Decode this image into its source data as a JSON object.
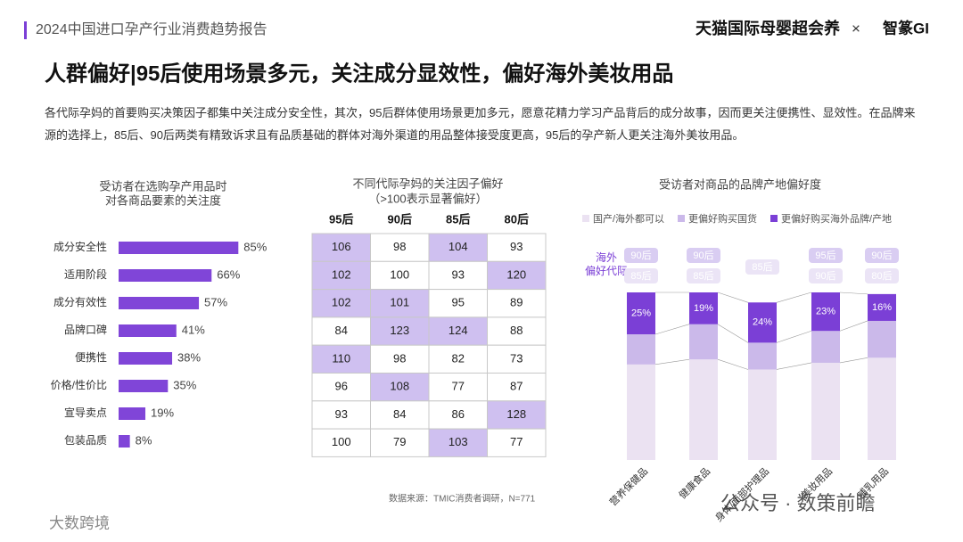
{
  "header": {
    "report": "2024中国进口孕产行业消费趋势报告",
    "brand": "天猫国际母婴超会养",
    "separator": "×",
    "partner": "智篆GI"
  },
  "title": "人群偏好|95后使用场景多元，关注成分显效性，偏好海外美妆用品",
  "summary": "各代际孕妈的首要购买决策因子都集中关注成分安全性，其次，95后群体使用场景更加多元，愿意花精力学习产品背后的成分故事，因而更关注便携性、显效性。在品牌来源的选择上，85后、90后两类有精致诉求且有品质基础的群体对海外渠道的用品整体接受度更高，95后的孕产新人更关注海外美妆用品。",
  "chart_data": [
    {
      "type": "bar",
      "title": "受访者在选购孕产用品时",
      "subtitle": "对各商品要素的关注度",
      "categories": [
        "成分安全性",
        "适用阶段",
        "成分有效性",
        "品牌口碑",
        "便携性",
        "价格/性价比",
        "宣导卖点",
        "包装品质"
      ],
      "values": [
        85,
        66,
        57,
        41,
        38,
        35,
        19,
        8
      ],
      "value_labels": [
        "85%",
        "66%",
        "57%",
        "41%",
        "38%",
        "35%",
        "19%",
        "8%"
      ],
      "color": "#8045d8"
    },
    {
      "type": "heatmap",
      "title": "不同代际孕妈的关注因子偏好",
      "subtitle": "（>100表示显著偏好）",
      "columns": [
        "95后",
        "90后",
        "85后",
        "80后"
      ],
      "values": [
        [
          106,
          98,
          104,
          93
        ],
        [
          102,
          100,
          93,
          120
        ],
        [
          102,
          101,
          95,
          89
        ],
        [
          84,
          123,
          124,
          88
        ],
        [
          110,
          98,
          82,
          73
        ],
        [
          96,
          108,
          77,
          87
        ],
        [
          93,
          84,
          86,
          128
        ],
        [
          100,
          79,
          103,
          77
        ]
      ],
      "threshold": 100,
      "color": "#cfc0f0"
    },
    {
      "type": "stacked_bar",
      "title": "受访者对商品的品牌产地偏好度",
      "categories": [
        "营养保健品",
        "健康食品",
        "身体/面部护理品",
        "美妆用品",
        "哺乳用品"
      ],
      "series": [
        {
          "name": "国产/海外都可以",
          "color": "#ebe2f2",
          "values": [
            57,
            60,
            54,
            58,
            61
          ]
        },
        {
          "name": "更偏好购买国货",
          "color": "#cbb9ea",
          "values": [
            18,
            21,
            16,
            19,
            22
          ]
        },
        {
          "name": "更偏好购买海外品牌/产地",
          "color": "#7b3fd6",
          "values": [
            25,
            19,
            24,
            23,
            16
          ],
          "value_labels": [
            "25%",
            "19%",
            "24%",
            "23%",
            "16%"
          ]
        }
      ],
      "badge_title": [
        "海外",
        "偏好代际"
      ],
      "badges": [
        [
          "90后",
          "85后"
        ],
        [
          "90后",
          "85后"
        ],
        [
          "85后"
        ],
        [
          "95后",
          "90后"
        ],
        [
          "90后",
          "80后"
        ]
      ]
    }
  ],
  "footer": {
    "source": "数据来源：TMIC消费者调研，N=771",
    "watermark": "公众号 · 数策前瞻",
    "corner": "大数跨境"
  }
}
